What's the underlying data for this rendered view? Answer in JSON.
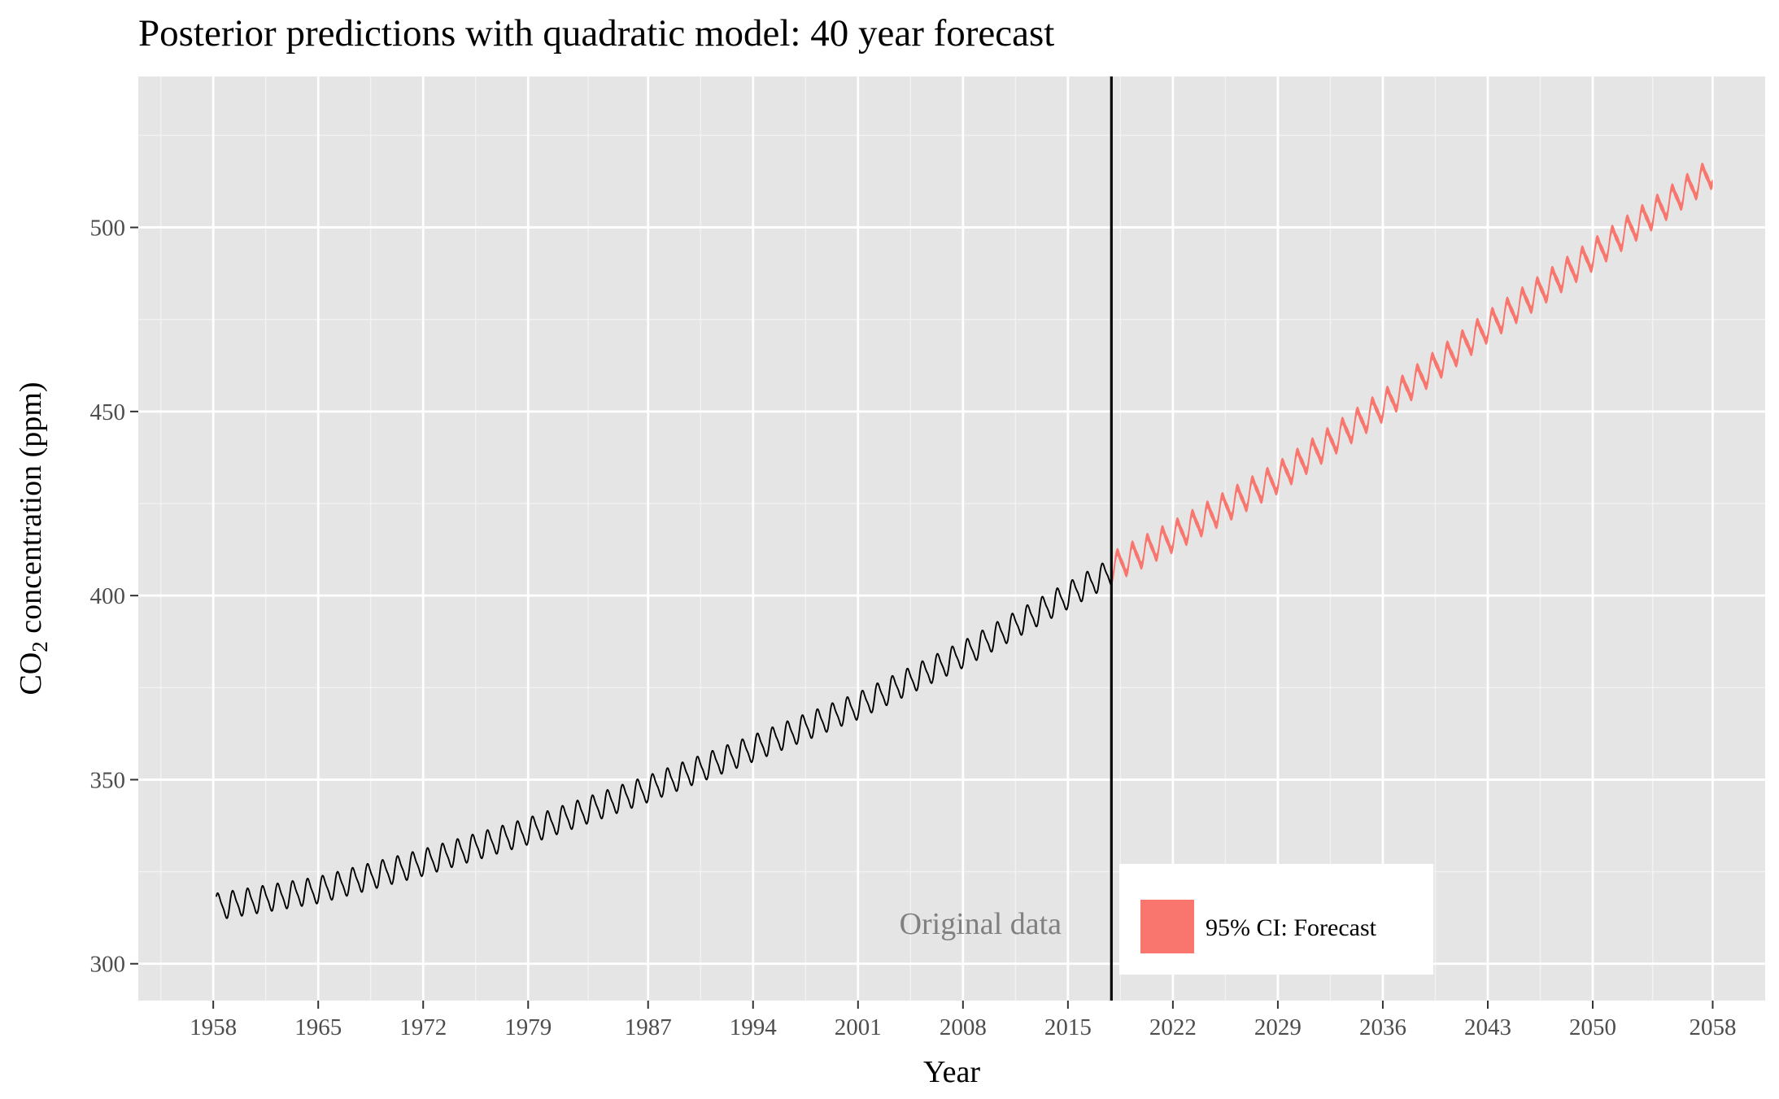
{
  "chart_data": {
    "type": "line",
    "title": "Posterior predictions with quadratic model: 40 year forecast",
    "xlabel": "Year",
    "ylabel": {
      "prefix": "CO",
      "subscript": "2",
      "suffix": " concentration (ppm)"
    },
    "xlim": [
      1953,
      2061.5
    ],
    "ylim": [
      290,
      541
    ],
    "x_ticks": [
      1958,
      1965,
      1972,
      1979,
      1987,
      1994,
      2001,
      2008,
      2015,
      2022,
      2029,
      2036,
      2043,
      2050,
      2058
    ],
    "y_ticks": [
      300,
      350,
      400,
      450,
      500
    ],
    "grid": true,
    "cutoff_year": 2017.9,
    "annotation": "Original data",
    "legend": {
      "position": "bottom-right",
      "entries": [
        {
          "label": "95% CI: Forecast",
          "color": "#f8766d"
        }
      ]
    },
    "series": [
      {
        "kind": "observed",
        "color": "#000000",
        "x_start": 1958.2,
        "x_end": 2017.9,
        "trend_points": [
          [
            1958.2,
            315.5
          ],
          [
            1965,
            320.0
          ],
          [
            1972,
            327.5
          ],
          [
            1979,
            336.0
          ],
          [
            1987,
            347.5
          ],
          [
            1994,
            358.5
          ],
          [
            2001,
            370.0
          ],
          [
            2008,
            384.0
          ],
          [
            2015,
            400.0
          ],
          [
            2017.9,
            406.5
          ]
        ],
        "seasonal_amplitude": 3.3
      },
      {
        "kind": "forecast_95ci",
        "color": "#f8766d",
        "x_start": 2017.9,
        "x_end": 2058,
        "trend_points": [
          [
            2017.9,
            407.5
          ],
          [
            2022,
            416.0
          ],
          [
            2029,
            432.0
          ],
          [
            2036,
            451.5
          ],
          [
            2043,
            473.0
          ],
          [
            2050,
            492.5
          ],
          [
            2058,
            515.0
          ]
        ],
        "seasonal_amplitude": 3.2,
        "ci_halfwidth": 1.0
      }
    ]
  }
}
